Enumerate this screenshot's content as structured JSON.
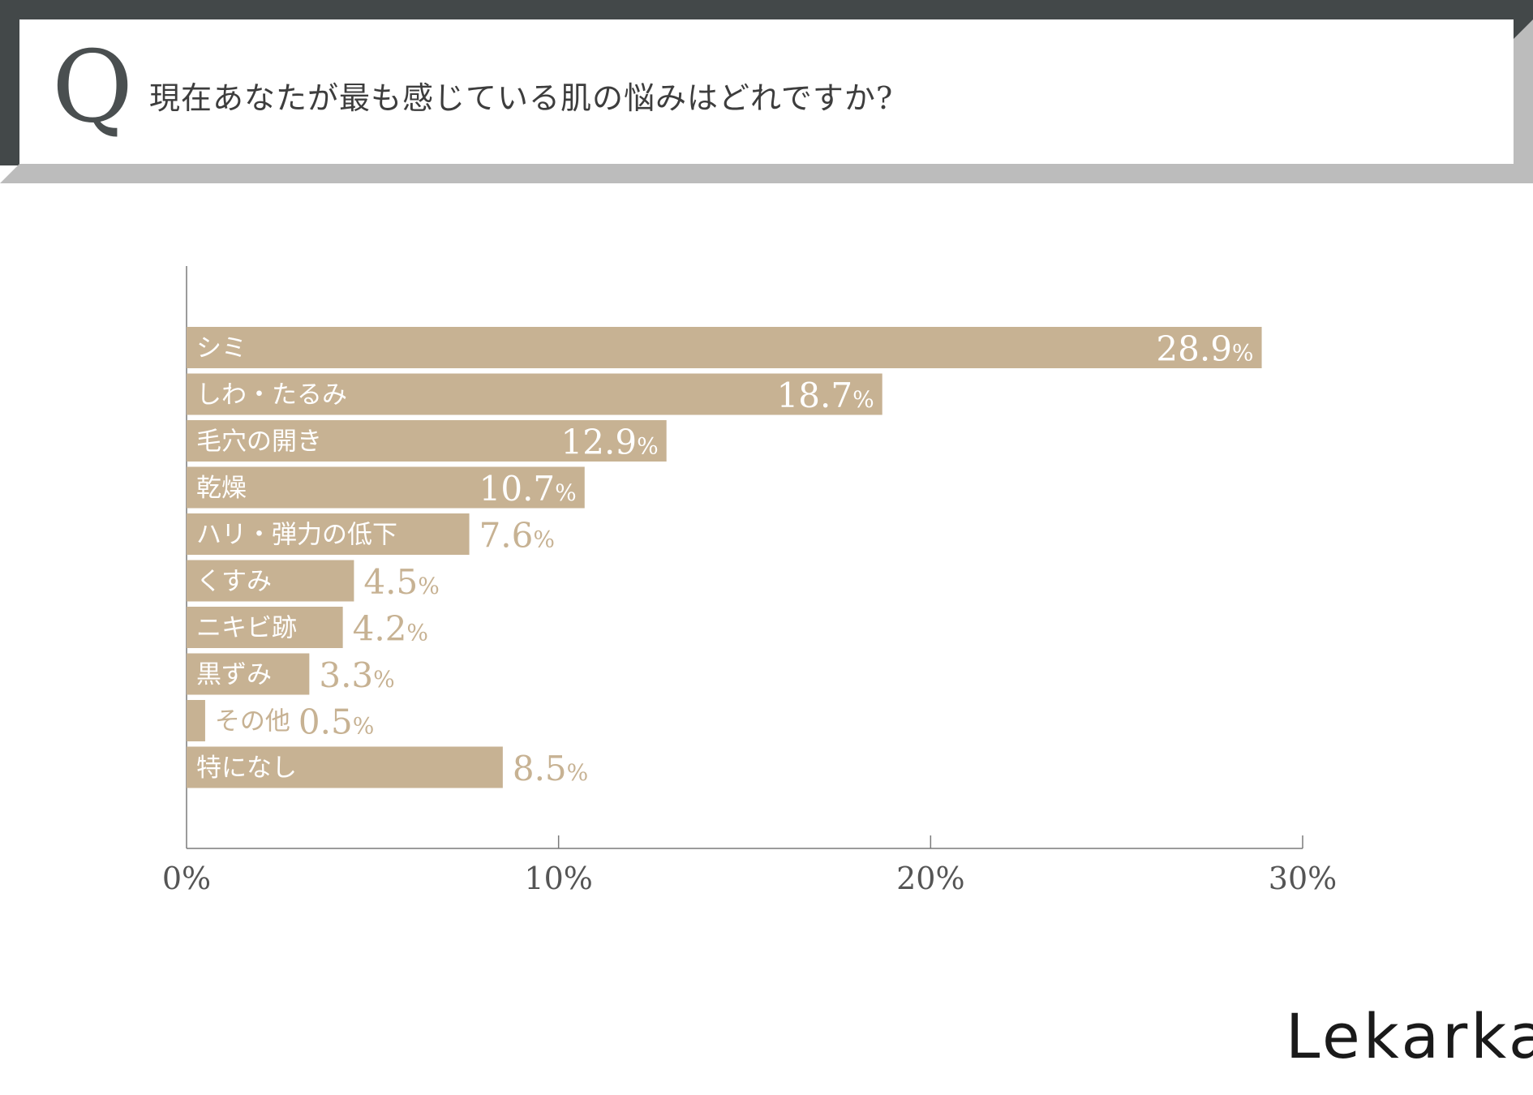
{
  "header": {
    "q_mark": "Q",
    "question": "現在あなたが最も感じている肌の悩みはどれですか?"
  },
  "colors": {
    "bar": "#c7b293",
    "label_inside": "#ffffff",
    "label_outside": "#c7b293",
    "axis": "#7a7a7a",
    "tick_label": "#555555",
    "frame_dark": "#434849",
    "frame_light": "#bcbcbc"
  },
  "chart_data": {
    "type": "bar",
    "orientation": "horizontal",
    "categories": [
      "シミ",
      "しわ・たるみ",
      "毛穴の開き",
      "乾燥",
      "ハリ・弾力の低下",
      "くすみ",
      "ニキビ跡",
      "黒ずみ",
      "その他",
      "特になし"
    ],
    "values": [
      28.9,
      18.7,
      12.9,
      10.7,
      7.6,
      4.5,
      4.2,
      3.3,
      0.5,
      8.5
    ],
    "value_labels": [
      "28.9",
      "18.7",
      "12.9",
      "10.7",
      "7.6",
      "4.5",
      "4.2",
      "3.3",
      "0.5",
      "8.5"
    ],
    "unit": "%",
    "xlim": [
      0,
      30
    ],
    "xticks": [
      0,
      10,
      20,
      30
    ],
    "xtick_labels": [
      "0%",
      "10%",
      "20%",
      "30%"
    ],
    "title": "",
    "xlabel": "",
    "ylabel": ""
  },
  "footer": {
    "logo": "Lekarka"
  }
}
